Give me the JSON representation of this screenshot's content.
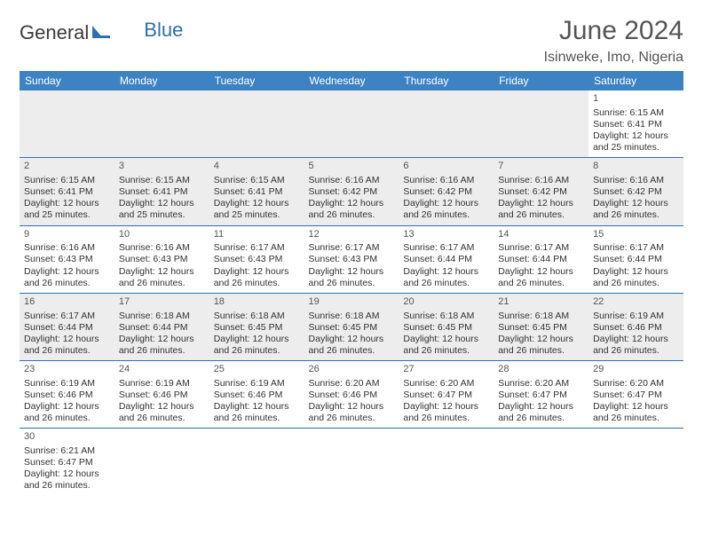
{
  "brand": {
    "part1": "General",
    "part2": "Blue"
  },
  "header": {
    "title": "June 2024",
    "location": "Isinweke, Imo, Nigeria"
  },
  "colors": {
    "header_bg": "#3d83c4",
    "border": "#2f6fb0",
    "alt_row": "#ededed",
    "text": "#333333"
  },
  "dayHeaders": [
    "Sunday",
    "Monday",
    "Tuesday",
    "Wednesday",
    "Thursday",
    "Friday",
    "Saturday"
  ],
  "weeks": [
    [
      null,
      null,
      null,
      null,
      null,
      null,
      {
        "d": "1",
        "rise": "Sunrise: 6:15 AM",
        "set": "Sunset: 6:41 PM",
        "dl": "Daylight: 12 hours and 25 minutes."
      }
    ],
    [
      {
        "d": "2",
        "rise": "Sunrise: 6:15 AM",
        "set": "Sunset: 6:41 PM",
        "dl": "Daylight: 12 hours and 25 minutes."
      },
      {
        "d": "3",
        "rise": "Sunrise: 6:15 AM",
        "set": "Sunset: 6:41 PM",
        "dl": "Daylight: 12 hours and 25 minutes."
      },
      {
        "d": "4",
        "rise": "Sunrise: 6:15 AM",
        "set": "Sunset: 6:41 PM",
        "dl": "Daylight: 12 hours and 25 minutes."
      },
      {
        "d": "5",
        "rise": "Sunrise: 6:16 AM",
        "set": "Sunset: 6:42 PM",
        "dl": "Daylight: 12 hours and 26 minutes."
      },
      {
        "d": "6",
        "rise": "Sunrise: 6:16 AM",
        "set": "Sunset: 6:42 PM",
        "dl": "Daylight: 12 hours and 26 minutes."
      },
      {
        "d": "7",
        "rise": "Sunrise: 6:16 AM",
        "set": "Sunset: 6:42 PM",
        "dl": "Daylight: 12 hours and 26 minutes."
      },
      {
        "d": "8",
        "rise": "Sunrise: 6:16 AM",
        "set": "Sunset: 6:42 PM",
        "dl": "Daylight: 12 hours and 26 minutes."
      }
    ],
    [
      {
        "d": "9",
        "rise": "Sunrise: 6:16 AM",
        "set": "Sunset: 6:43 PM",
        "dl": "Daylight: 12 hours and 26 minutes."
      },
      {
        "d": "10",
        "rise": "Sunrise: 6:16 AM",
        "set": "Sunset: 6:43 PM",
        "dl": "Daylight: 12 hours and 26 minutes."
      },
      {
        "d": "11",
        "rise": "Sunrise: 6:17 AM",
        "set": "Sunset: 6:43 PM",
        "dl": "Daylight: 12 hours and 26 minutes."
      },
      {
        "d": "12",
        "rise": "Sunrise: 6:17 AM",
        "set": "Sunset: 6:43 PM",
        "dl": "Daylight: 12 hours and 26 minutes."
      },
      {
        "d": "13",
        "rise": "Sunrise: 6:17 AM",
        "set": "Sunset: 6:44 PM",
        "dl": "Daylight: 12 hours and 26 minutes."
      },
      {
        "d": "14",
        "rise": "Sunrise: 6:17 AM",
        "set": "Sunset: 6:44 PM",
        "dl": "Daylight: 12 hours and 26 minutes."
      },
      {
        "d": "15",
        "rise": "Sunrise: 6:17 AM",
        "set": "Sunset: 6:44 PM",
        "dl": "Daylight: 12 hours and 26 minutes."
      }
    ],
    [
      {
        "d": "16",
        "rise": "Sunrise: 6:17 AM",
        "set": "Sunset: 6:44 PM",
        "dl": "Daylight: 12 hours and 26 minutes."
      },
      {
        "d": "17",
        "rise": "Sunrise: 6:18 AM",
        "set": "Sunset: 6:44 PM",
        "dl": "Daylight: 12 hours and 26 minutes."
      },
      {
        "d": "18",
        "rise": "Sunrise: 6:18 AM",
        "set": "Sunset: 6:45 PM",
        "dl": "Daylight: 12 hours and 26 minutes."
      },
      {
        "d": "19",
        "rise": "Sunrise: 6:18 AM",
        "set": "Sunset: 6:45 PM",
        "dl": "Daylight: 12 hours and 26 minutes."
      },
      {
        "d": "20",
        "rise": "Sunrise: 6:18 AM",
        "set": "Sunset: 6:45 PM",
        "dl": "Daylight: 12 hours and 26 minutes."
      },
      {
        "d": "21",
        "rise": "Sunrise: 6:18 AM",
        "set": "Sunset: 6:45 PM",
        "dl": "Daylight: 12 hours and 26 minutes."
      },
      {
        "d": "22",
        "rise": "Sunrise: 6:19 AM",
        "set": "Sunset: 6:46 PM",
        "dl": "Daylight: 12 hours and 26 minutes."
      }
    ],
    [
      {
        "d": "23",
        "rise": "Sunrise: 6:19 AM",
        "set": "Sunset: 6:46 PM",
        "dl": "Daylight: 12 hours and 26 minutes."
      },
      {
        "d": "24",
        "rise": "Sunrise: 6:19 AM",
        "set": "Sunset: 6:46 PM",
        "dl": "Daylight: 12 hours and 26 minutes."
      },
      {
        "d": "25",
        "rise": "Sunrise: 6:19 AM",
        "set": "Sunset: 6:46 PM",
        "dl": "Daylight: 12 hours and 26 minutes."
      },
      {
        "d": "26",
        "rise": "Sunrise: 6:20 AM",
        "set": "Sunset: 6:46 PM",
        "dl": "Daylight: 12 hours and 26 minutes."
      },
      {
        "d": "27",
        "rise": "Sunrise: 6:20 AM",
        "set": "Sunset: 6:47 PM",
        "dl": "Daylight: 12 hours and 26 minutes."
      },
      {
        "d": "28",
        "rise": "Sunrise: 6:20 AM",
        "set": "Sunset: 6:47 PM",
        "dl": "Daylight: 12 hours and 26 minutes."
      },
      {
        "d": "29",
        "rise": "Sunrise: 6:20 AM",
        "set": "Sunset: 6:47 PM",
        "dl": "Daylight: 12 hours and 26 minutes."
      }
    ],
    [
      {
        "d": "30",
        "rise": "Sunrise: 6:21 AM",
        "set": "Sunset: 6:47 PM",
        "dl": "Daylight: 12 hours and 26 minutes."
      },
      null,
      null,
      null,
      null,
      null,
      null
    ]
  ]
}
